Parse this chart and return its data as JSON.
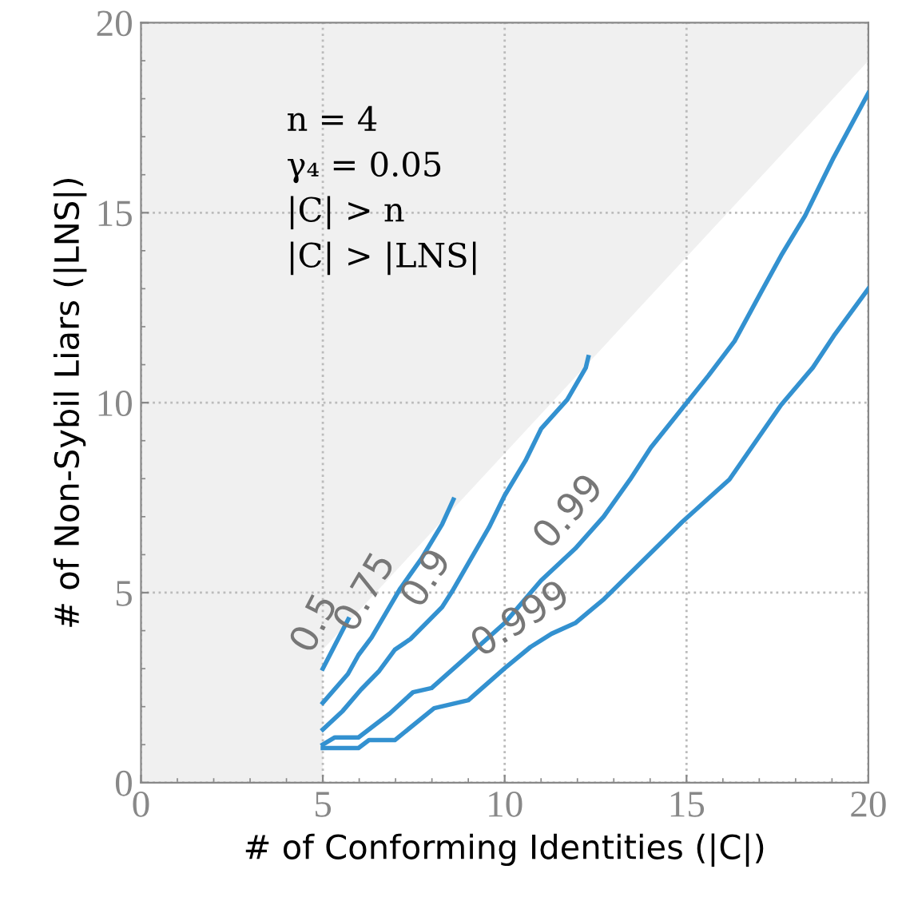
{
  "chart_data": {
    "type": "line",
    "xlabel": "# of Conforming Identities (|C|)",
    "ylabel": "# of Non-Sybil Liars (|LNS|)",
    "xlim": [
      0,
      20
    ],
    "ylim": [
      0,
      20
    ],
    "xticks": [
      0,
      5,
      10,
      15,
      20
    ],
    "yticks": [
      0,
      5,
      10,
      15,
      20
    ],
    "grid": true,
    "legend": false,
    "marker": "none",
    "line_style": "solid",
    "annotations": [
      "n = 4",
      "γ₄ = 0.05",
      "|C| > n",
      "|C| > |LNS|"
    ],
    "series": [
      {
        "type": "area",
        "color": "#ffffff",
        "x": [
          5,
          20
        ],
        "values": [
          3.5,
          19
        ]
      },
      {
        "name": "0.5",
        "color": "#3391d0",
        "x": [
          5,
          5.7
        ],
        "values": [
          3.0,
          4.3
        ]
      },
      {
        "name": "0.75",
        "color": "#3391d0",
        "x": [
          5,
          5.69,
          5.98,
          6.34,
          7.13,
          7.7,
          8.28,
          8.59
        ],
        "values": [
          2.1,
          2.86,
          3.36,
          3.82,
          5.11,
          5.88,
          6.8,
          7.45
        ]
      },
      {
        "name": "0.9",
        "color": "#3391d0",
        "x": [
          5,
          5.55,
          6.05,
          6.55,
          6.98,
          7.41,
          8.28,
          8.56,
          9.57,
          10.0,
          10.57,
          11.0,
          11.72,
          12.23,
          12.3
        ],
        "values": [
          1.4,
          1.89,
          2.45,
          2.94,
          3.5,
          3.78,
          4.62,
          5.04,
          6.72,
          7.56,
          8.47,
          9.31,
          10.08,
          10.92,
          11.2
        ]
      },
      {
        "name": "0.99",
        "color": "#3391d0",
        "x": [
          5,
          5.33,
          5.98,
          6.84,
          7.48,
          7.99,
          8.85,
          10.0,
          11.0,
          11.94,
          12.72,
          13.45,
          14.02,
          15.6,
          16.32,
          17.04,
          17.6,
          18.26,
          18.76,
          19.05,
          20
        ],
        "values": [
          1.0,
          1.19,
          1.19,
          1.82,
          2.38,
          2.49,
          3.22,
          4.2,
          5.32,
          6.16,
          7.0,
          7.98,
          8.82,
          10.71,
          11.62,
          12.89,
          13.87,
          14.92,
          15.9,
          16.46,
          18.15
        ]
      },
      {
        "name": "0.999",
        "color": "#3391d0",
        "x": [
          5,
          5.98,
          6.27,
          6.98,
          8.06,
          9.0,
          10.0,
          10.71,
          11.29,
          11.94,
          12.73,
          14.88,
          16.18,
          17.6,
          18.47,
          19.05,
          20
        ],
        "values": [
          0.91,
          0.91,
          1.12,
          1.12,
          1.96,
          2.17,
          3.01,
          3.57,
          3.92,
          4.2,
          4.83,
          6.86,
          7.98,
          9.94,
          10.92,
          11.76,
          13.0
        ]
      }
    ]
  }
}
